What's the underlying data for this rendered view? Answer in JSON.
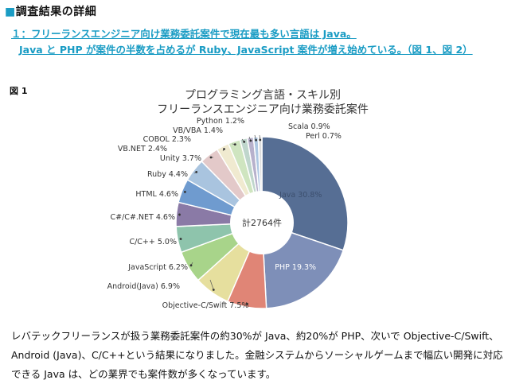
{
  "section": {
    "marker": "■",
    "title": "調査結果の詳細"
  },
  "headline": {
    "line1": "１：フリーランスエンジニア向け業務委託案件で現在最も多い言語は Java。",
    "line2": "Java と PHP が案件の半数を占めるが Ruby、JavaScript 案件が増え始めている。（図 1、図 2）"
  },
  "figure_label": "図 1",
  "chart_data": {
    "type": "pie",
    "title_line1": "プログラミング言語・スキル別",
    "title_line2": "フリーランスエンジニア向け業務委託案件",
    "center_label": "計2764件",
    "slices": [
      {
        "name": "Java",
        "value": 30.8,
        "label": "Java 30.8%",
        "color": "#566e94"
      },
      {
        "name": "PHP",
        "value": 19.3,
        "label": "PHP 19.3%",
        "color": "#7e8fb8"
      },
      {
        "name": "Objective-C/Swift",
        "value": 7.5,
        "label": "Objective-C/Swift 7.5%",
        "color": "#e08576"
      },
      {
        "name": "Android(Java)",
        "value": 6.9,
        "label": "Android(Java) 6.9%",
        "color": "#e6df9e"
      },
      {
        "name": "JavaScript",
        "value": 6.2,
        "label": "JavaScript 6.2%",
        "color": "#a8d48a"
      },
      {
        "name": "C/C++",
        "value": 5.0,
        "label": "C/C++ 5.0%",
        "color": "#8ec4ac"
      },
      {
        "name": "C#/C#.NET",
        "value": 4.6,
        "label": "C#/C#.NET 4.6%",
        "color": "#8a7aa6"
      },
      {
        "name": "HTML",
        "value": 4.6,
        "label": "HTML 4.6%",
        "color": "#6f9bcf"
      },
      {
        "name": "Ruby",
        "value": 4.4,
        "label": "Ruby 4.4%",
        "color": "#a9c4df"
      },
      {
        "name": "Unity",
        "value": 3.7,
        "label": "Unity 3.7%",
        "color": "#e3c9c9"
      },
      {
        "name": "VB.NET",
        "value": 2.4,
        "label": "VB.NET 2.4%",
        "color": "#f0ead0"
      },
      {
        "name": "COBOL",
        "value": 2.3,
        "label": "COBOL 2.3%",
        "color": "#cfe5c0"
      },
      {
        "name": "VB/VBA",
        "value": 1.4,
        "label": "VB/VBA 1.4%",
        "color": "#bfd6cc"
      },
      {
        "name": "Python",
        "value": 1.2,
        "label": "Python 1.2%",
        "color": "#b7b1cc"
      },
      {
        "name": "Scala",
        "value": 0.9,
        "label": "Scala 0.9%",
        "color": "#aec7e2"
      },
      {
        "name": "Perl",
        "value": 0.7,
        "label": "Perl 0.7%",
        "color": "#dcdcdc"
      }
    ]
  },
  "body": {
    "line1": "レバテックフリーランスが扱う業務委託案件の約30%が Java、約20%が PHP、次いで Objective-C/Swift、",
    "line2": "Android (Java)、C/C++という結果になりました。金融システムからソーシャルゲームまで幅広い開発に対応",
    "line3": "できる Java は、どの業界でも案件数が多くなっています。"
  }
}
